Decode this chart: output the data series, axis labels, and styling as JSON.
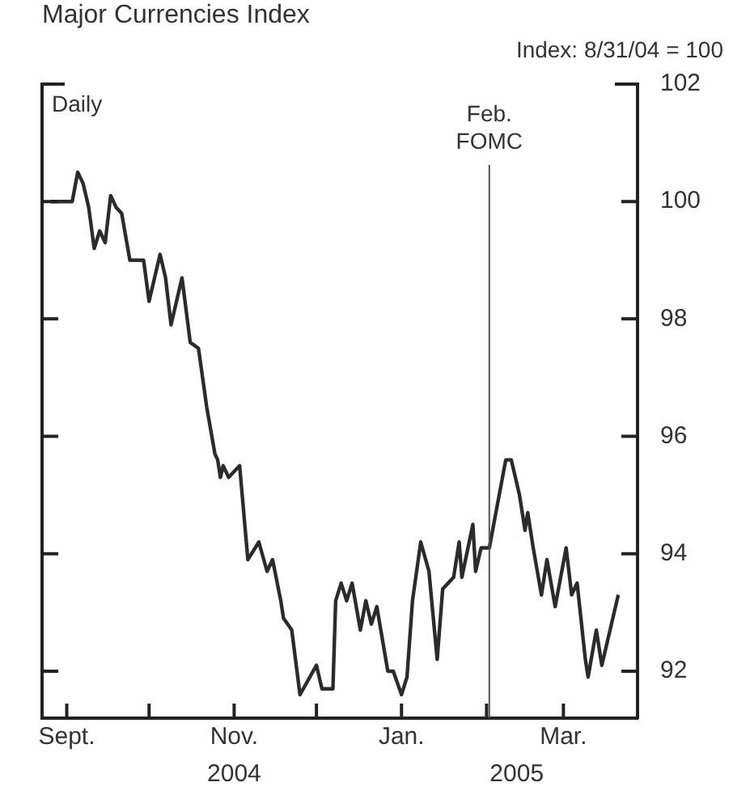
{
  "chart_data": {
    "type": "line",
    "title": "Major Currencies Index",
    "subtitle": "Index: 8/31/04 = 100",
    "annotations": [
      "Daily"
    ],
    "x": [
      "2004-08-26",
      "2004-09-03",
      "2004-09-05",
      "2004-09-07",
      "2004-09-09",
      "2004-09-11",
      "2004-09-13",
      "2004-09-15",
      "2004-09-17",
      "2004-09-19",
      "2004-09-21",
      "2004-09-24",
      "2004-09-29",
      "2004-10-01",
      "2004-10-05",
      "2004-10-07",
      "2004-10-09",
      "2004-10-13",
      "2004-10-16",
      "2004-10-19",
      "2004-10-22",
      "2004-10-25",
      "2004-10-26",
      "2004-10-27",
      "2004-10-28",
      "2004-10-30",
      "2004-11-03",
      "2004-11-06",
      "2004-11-10",
      "2004-11-13",
      "2004-11-15",
      "2004-11-18",
      "2004-11-19",
      "2004-11-22",
      "2004-11-25",
      "2004-12-01",
      "2004-12-03",
      "2004-12-07",
      "2004-12-08",
      "2004-12-10",
      "2004-12-12",
      "2004-12-14",
      "2004-12-17",
      "2004-12-19",
      "2004-12-21",
      "2004-12-23",
      "2004-12-27",
      "2004-12-29",
      "2005-01-01",
      "2005-01-03",
      "2005-01-05",
      "2005-01-08",
      "2005-01-11",
      "2005-01-14",
      "2005-01-16",
      "2005-01-20",
      "2005-01-22",
      "2005-01-23",
      "2005-01-27",
      "2005-01-28",
      "2005-01-30",
      "2005-02-02",
      "2005-02-04",
      "2005-02-08",
      "2005-02-10",
      "2005-02-13",
      "2005-02-15",
      "2005-02-16",
      "2005-02-18",
      "2005-02-21",
      "2005-02-23",
      "2005-02-26",
      "2005-03-02",
      "2005-03-04",
      "2005-03-06",
      "2005-03-09",
      "2005-03-10",
      "2005-03-13",
      "2005-03-15",
      "2005-03-21"
    ],
    "series": [
      {
        "color": "#2b2b2b",
        "values": [
          100,
          100,
          100.5,
          100.3,
          99.9,
          99.2,
          99.5,
          99.3,
          100.1,
          99.9,
          99.8,
          99.0,
          99.0,
          98.3,
          99.1,
          98.7,
          97.9,
          98.7,
          97.6,
          97.5,
          96.5,
          95.7,
          95.6,
          95.3,
          95.5,
          95.3,
          95.5,
          93.9,
          94.2,
          93.7,
          93.9,
          93.2,
          92.9,
          92.7,
          91.6,
          92.1,
          91.7,
          91.7,
          93.2,
          93.5,
          93.2,
          93.5,
          92.7,
          93.2,
          92.8,
          93.1,
          92.0,
          92.0,
          91.6,
          91.9,
          93.2,
          94.2,
          93.7,
          92.2,
          93.4,
          93.6,
          94.2,
          93.6,
          94.5,
          93.7,
          94.1,
          94.1,
          94.6,
          95.6,
          95.6,
          95.0,
          94.4,
          94.7,
          94.1,
          93.3,
          93.9,
          93.1,
          94.1,
          93.3,
          93.5,
          92.2,
          91.9,
          92.7,
          92.1,
          93.3
        ]
      }
    ],
    "xlim": [
      "2004-08-23",
      "2005-03-28"
    ],
    "xticks": [
      {
        "value": "2004-09-01",
        "label": "Sept."
      },
      {
        "value": "2004-10-01",
        "label": null
      },
      {
        "value": "2004-11-01",
        "label": "Nov."
      },
      {
        "value": "2004-12-01",
        "label": null
      },
      {
        "value": "2005-01-01",
        "label": "Jan."
      },
      {
        "value": "2005-02-01",
        "label": null
      },
      {
        "value": "2005-03-01",
        "label": "Mar."
      }
    ],
    "x2lim": [
      "2004-08-23",
      "2005-03-28"
    ],
    "x2ticks": [
      {
        "value": "2004-11-01",
        "label": "2004"
      },
      {
        "value": "2005-02-12",
        "label": "2005"
      }
    ],
    "ylim": [
      91.2,
      102
    ],
    "yticks": [
      92,
      94,
      96,
      98,
      100,
      102
    ],
    "ref_lines": [
      {
        "axis": "x",
        "value": "2005-02-02",
        "label": "Feb. FOMC",
        "color": "#555555"
      }
    ],
    "grid": false,
    "legend": false
  }
}
